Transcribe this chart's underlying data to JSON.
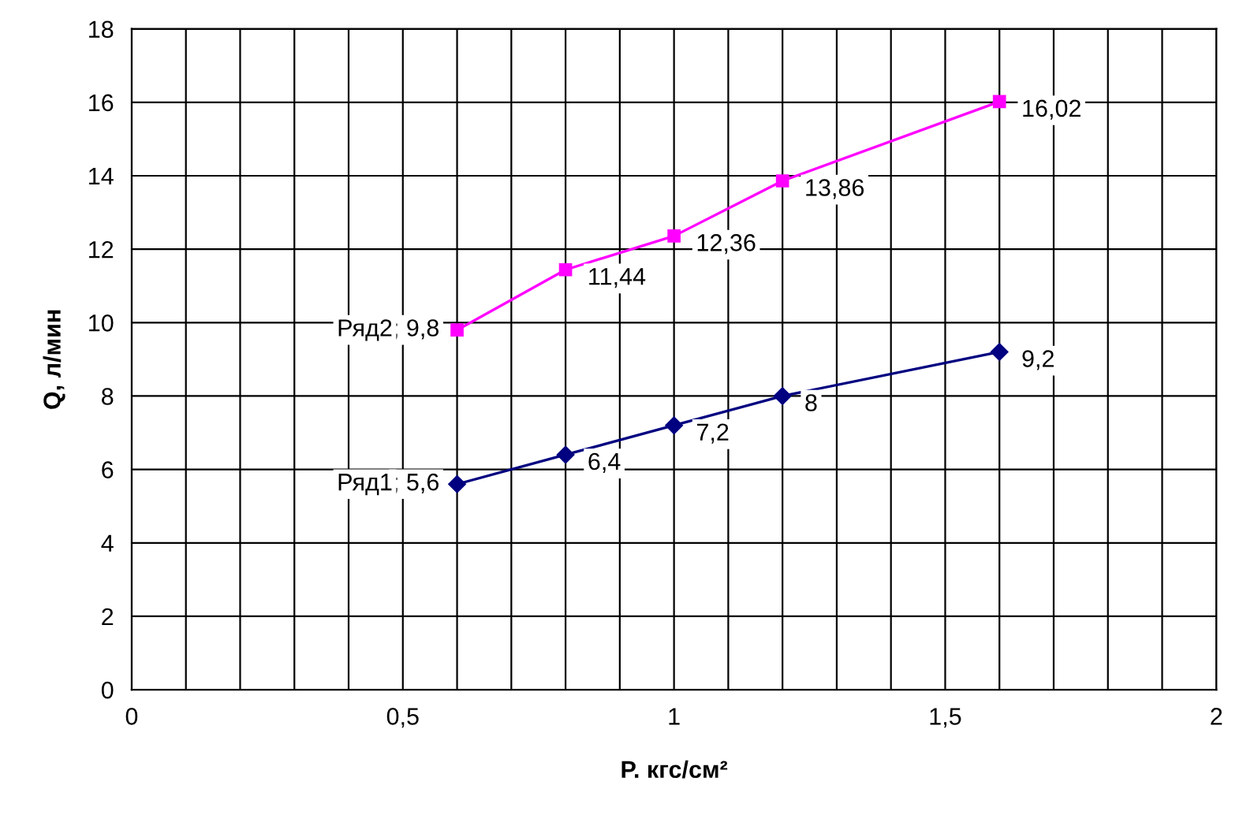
{
  "chart_data": {
    "type": "line",
    "xlabel": "P. кгс/см²",
    "ylabel": "Q, л/мин",
    "xlim": [
      0,
      2
    ],
    "ylim": [
      0,
      18
    ],
    "xticks": [
      0,
      {
        "value": 0.1,
        "label": null
      },
      {
        "value": 0.2,
        "label": null
      },
      {
        "value": 0.3,
        "label": null
      },
      {
        "value": 0.4,
        "label": null
      },
      {
        "value": 0.5,
        "label": "0,5"
      },
      {
        "value": 0.6,
        "label": null
      },
      {
        "value": 0.7,
        "label": null
      },
      {
        "value": 0.8,
        "label": null
      },
      {
        "value": 0.9,
        "label": null
      },
      1,
      {
        "value": 1.1,
        "label": null
      },
      {
        "value": 1.2,
        "label": null
      },
      {
        "value": 1.3,
        "label": null
      },
      {
        "value": 1.4,
        "label": null
      },
      {
        "value": 1.5,
        "label": "1,5"
      },
      {
        "value": 1.6,
        "label": null
      },
      {
        "value": 1.7,
        "label": null
      },
      {
        "value": 1.8,
        "label": null
      },
      {
        "value": 1.9,
        "label": null
      },
      2
    ],
    "yticks": [
      0,
      2,
      4,
      6,
      8,
      10,
      12,
      14,
      16,
      18
    ],
    "grid": true,
    "legend": false,
    "series": [
      {
        "name": "Ряд1",
        "color": "#000080",
        "marker": "diamond",
        "x": [
          0.6,
          0.8,
          1.0,
          1.2,
          1.6
        ],
        "values": [
          5.6,
          6.4,
          7.2,
          8,
          9.2
        ],
        "value_labels": [
          "; 5,6",
          "6,4",
          "7,2",
          "8",
          "9,2"
        ]
      },
      {
        "name": "Ряд2",
        "color": "#ff00ff",
        "marker": "square",
        "x": [
          0.6,
          0.8,
          1.0,
          1.2,
          1.6
        ],
        "values": [
          9.8,
          11.44,
          12.36,
          13.86,
          16.02
        ],
        "value_labels": [
          "; 9,8",
          "11,44",
          "12,36",
          "13,86",
          "16,02"
        ]
      }
    ]
  }
}
